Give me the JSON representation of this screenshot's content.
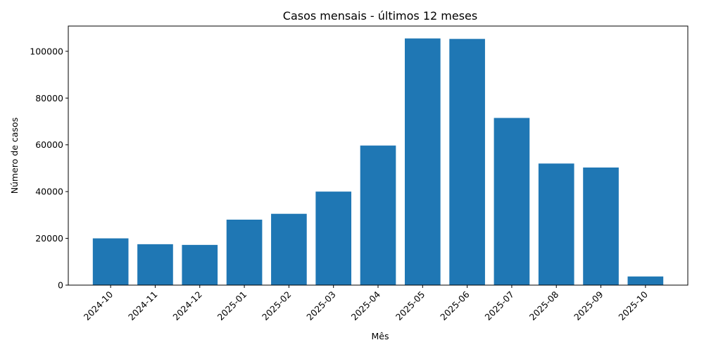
{
  "chart_data": {
    "type": "bar",
    "title": "Casos mensais - últimos 12 meses",
    "xlabel": "Mês",
    "ylabel": "Número de casos",
    "categories": [
      "2024-10",
      "2024-11",
      "2024-12",
      "2025-01",
      "2025-02",
      "2025-03",
      "2025-04",
      "2025-05",
      "2025-06",
      "2025-07",
      "2025-08",
      "2025-09",
      "2025-10"
    ],
    "values": [
      20000,
      17500,
      17200,
      28000,
      30500,
      40000,
      59700,
      105500,
      105300,
      71500,
      52000,
      50300,
      3700
    ],
    "ylim": [
      0,
      110800
    ],
    "yticks": [
      0,
      20000,
      40000,
      60000,
      80000,
      100000
    ],
    "bar_color": "#1f77b4",
    "grid": false,
    "legend": "none"
  }
}
